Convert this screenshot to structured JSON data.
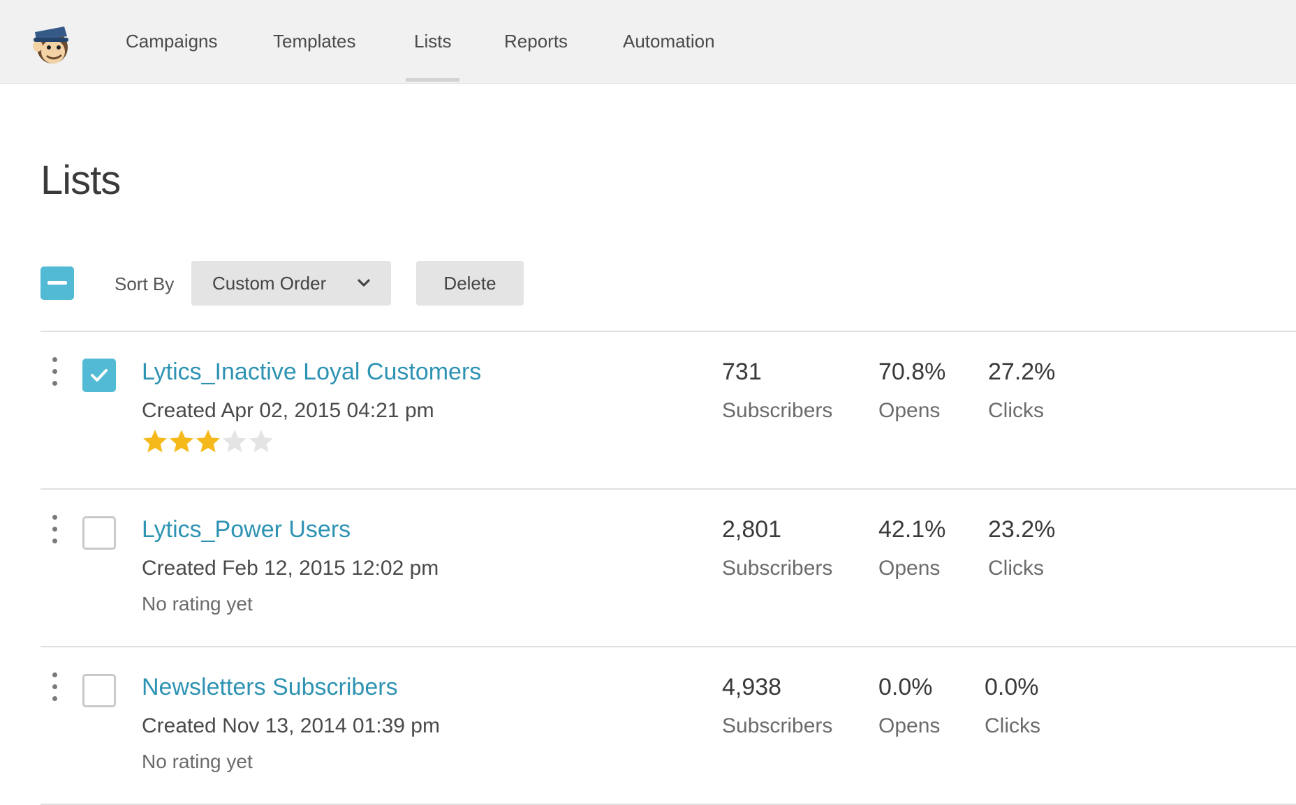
{
  "nav": {
    "logo": "mailchimp-freddie-logo",
    "items": [
      {
        "label": "Campaigns",
        "active": false
      },
      {
        "label": "Templates",
        "active": false
      },
      {
        "label": "Lists",
        "active": true
      },
      {
        "label": "Reports",
        "active": false
      },
      {
        "label": "Automation",
        "active": false
      }
    ]
  },
  "page": {
    "title": "Lists"
  },
  "toolbar": {
    "bulk_select_state": "indeterminate",
    "sort_label": "Sort By",
    "sort_value": "Custom Order",
    "delete_label": "Delete"
  },
  "colors": {
    "accent": "#52bad5",
    "link": "#2e93b3",
    "star": "#f6b91b",
    "star_empty": "#e4e4e4"
  },
  "lists": [
    {
      "name": "Lytics_Inactive Loyal Customers",
      "created": "Created Apr 02, 2015 04:21 pm",
      "checked": true,
      "rating": 3,
      "rating_max": 5,
      "rating_text": "",
      "subscribers": "731",
      "opens": "70.8%",
      "clicks": "27.2%"
    },
    {
      "name": "Lytics_Power Users",
      "created": "Created Feb 12, 2015 12:02 pm",
      "checked": false,
      "rating": 0,
      "rating_max": 5,
      "rating_text": "No rating yet",
      "subscribers": "2,801",
      "opens": "42.1%",
      "clicks": "23.2%"
    },
    {
      "name": "Newsletters Subscribers",
      "created": "Created Nov 13, 2014 01:39 pm",
      "checked": false,
      "rating": 0,
      "rating_max": 5,
      "rating_text": "No rating yet",
      "subscribers": "4,938",
      "opens": "0.0%",
      "clicks": "0.0%"
    }
  ],
  "stat_labels": {
    "subscribers": "Subscribers",
    "opens": "Opens",
    "clicks": "Clicks"
  }
}
